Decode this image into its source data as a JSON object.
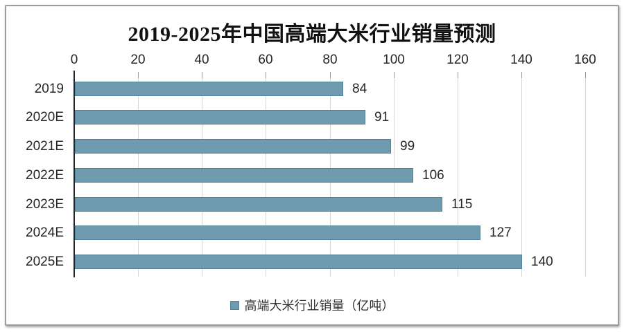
{
  "chart_data": {
    "type": "bar",
    "orientation": "horizontal",
    "title": "2019-2025年中国高端大米行业销量预测",
    "categories": [
      "2019",
      "2020E",
      "2021E",
      "2022E",
      "2023E",
      "2024E",
      "2025E"
    ],
    "values": [
      84,
      91,
      99,
      106,
      115,
      127,
      140
    ],
    "value_axis": {
      "position": "top",
      "min": 0,
      "max": 160,
      "ticks": [
        0,
        20,
        40,
        60,
        80,
        100,
        120,
        140,
        160
      ]
    },
    "grid": true,
    "legend": {
      "position": "bottom",
      "label": "高端大米行业销量（亿吨）"
    },
    "colors": {
      "bar_fill": "#6F9BAF",
      "bar_border": "#54809A",
      "gridline": "#d6d6d6",
      "axis_line": "#262626",
      "text": "#262626",
      "frame_border": "#9b9b9b"
    }
  }
}
